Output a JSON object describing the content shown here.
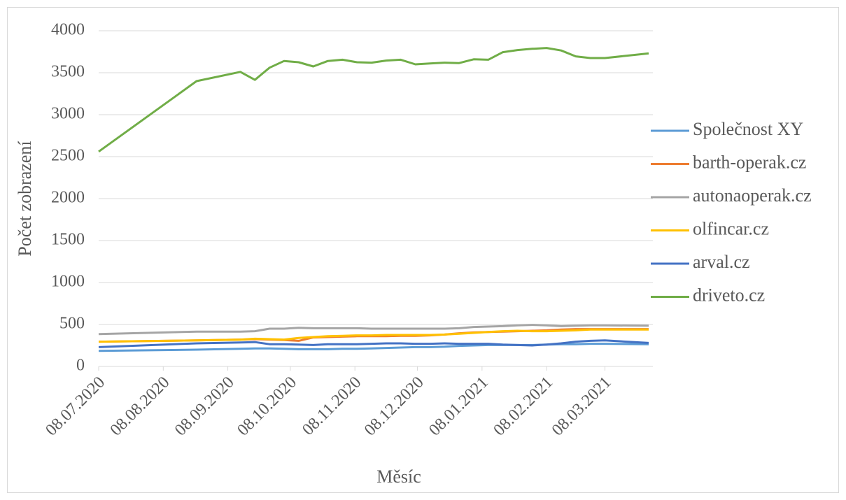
{
  "chart_data": {
    "type": "line",
    "x_label": "Měsíc",
    "y_label": "Počet zobrazení",
    "x": [
      "08.07.2020",
      "24.08.2020",
      "14.09.2020",
      "21.09.2020",
      "28.09.2020",
      "05.10.2020",
      "12.10.2020",
      "19.10.2020",
      "26.10.2020",
      "02.11.2020",
      "09.11.2020",
      "16.11.2020",
      "23.11.2020",
      "30.11.2020",
      "07.12.2020",
      "14.12.2020",
      "21.12.2020",
      "28.12.2020",
      "04.01.2021",
      "11.01.2021",
      "18.01.2021",
      "25.01.2021",
      "01.02.2021",
      "08.02.2021",
      "15.02.2021",
      "22.02.2021",
      "01.03.2021",
      "08.03.2021",
      "29.03.2021"
    ],
    "xlim": [
      "08.07.2020",
      "31.03.2021"
    ],
    "xticks": [
      "08.07.2020",
      "08.08.2020",
      "08.09.2020",
      "08.10.2020",
      "08.11.2020",
      "08.12.2020",
      "08.01.2021",
      "08.02.2021",
      "08.03.2021"
    ],
    "ylim": [
      0,
      4000
    ],
    "yticks": [
      0,
      500,
      1000,
      1500,
      2000,
      2500,
      3000,
      3500,
      4000
    ],
    "grid": true,
    "legend": "right",
    "series": [
      {
        "name": "Společnost XY",
        "color": "#5b9bd5",
        "values": [
          185,
          200,
          210,
          215,
          215,
          210,
          205,
          205,
          205,
          210,
          210,
          215,
          220,
          225,
          230,
          230,
          235,
          245,
          250,
          255,
          255,
          255,
          255,
          260,
          265,
          265,
          270,
          270,
          265
        ]
      },
      {
        "name": "barth-operak.cz",
        "color": "#ed7d31",
        "values": [
          295,
          310,
          320,
          325,
          320,
          315,
          305,
          345,
          350,
          355,
          360,
          360,
          360,
          365,
          365,
          370,
          380,
          395,
          405,
          410,
          415,
          420,
          425,
          430,
          440,
          445,
          445,
          445,
          445
        ]
      },
      {
        "name": "autonaoperak.cz",
        "color": "#a5a5a5",
        "values": [
          385,
          415,
          415,
          420,
          450,
          450,
          460,
          455,
          455,
          455,
          455,
          450,
          450,
          450,
          450,
          450,
          450,
          455,
          470,
          475,
          480,
          490,
          495,
          490,
          480,
          485,
          490,
          490,
          485
        ]
      },
      {
        "name": "olfincar.cz",
        "color": "#ffc000",
        "values": [
          295,
          310,
          320,
          330,
          325,
          320,
          340,
          350,
          360,
          365,
          370,
          370,
          375,
          375,
          375,
          375,
          380,
          390,
          400,
          410,
          420,
          425,
          420,
          420,
          425,
          430,
          440,
          440,
          440
        ]
      },
      {
        "name": "arval.cz",
        "color": "#4472c4",
        "values": [
          230,
          275,
          285,
          290,
          265,
          265,
          260,
          255,
          265,
          265,
          265,
          270,
          275,
          275,
          270,
          270,
          275,
          270,
          270,
          270,
          260,
          255,
          250,
          260,
          275,
          295,
          305,
          310,
          280
        ]
      },
      {
        "name": "driveto.cz",
        "color": "#70ad47",
        "values": [
          2560,
          3400,
          3510,
          3415,
          3560,
          3640,
          3625,
          3575,
          3640,
          3655,
          3625,
          3620,
          3645,
          3655,
          3600,
          3610,
          3620,
          3615,
          3660,
          3655,
          3745,
          3770,
          3785,
          3795,
          3765,
          3695,
          3675,
          3675,
          3730
        ]
      }
    ]
  }
}
